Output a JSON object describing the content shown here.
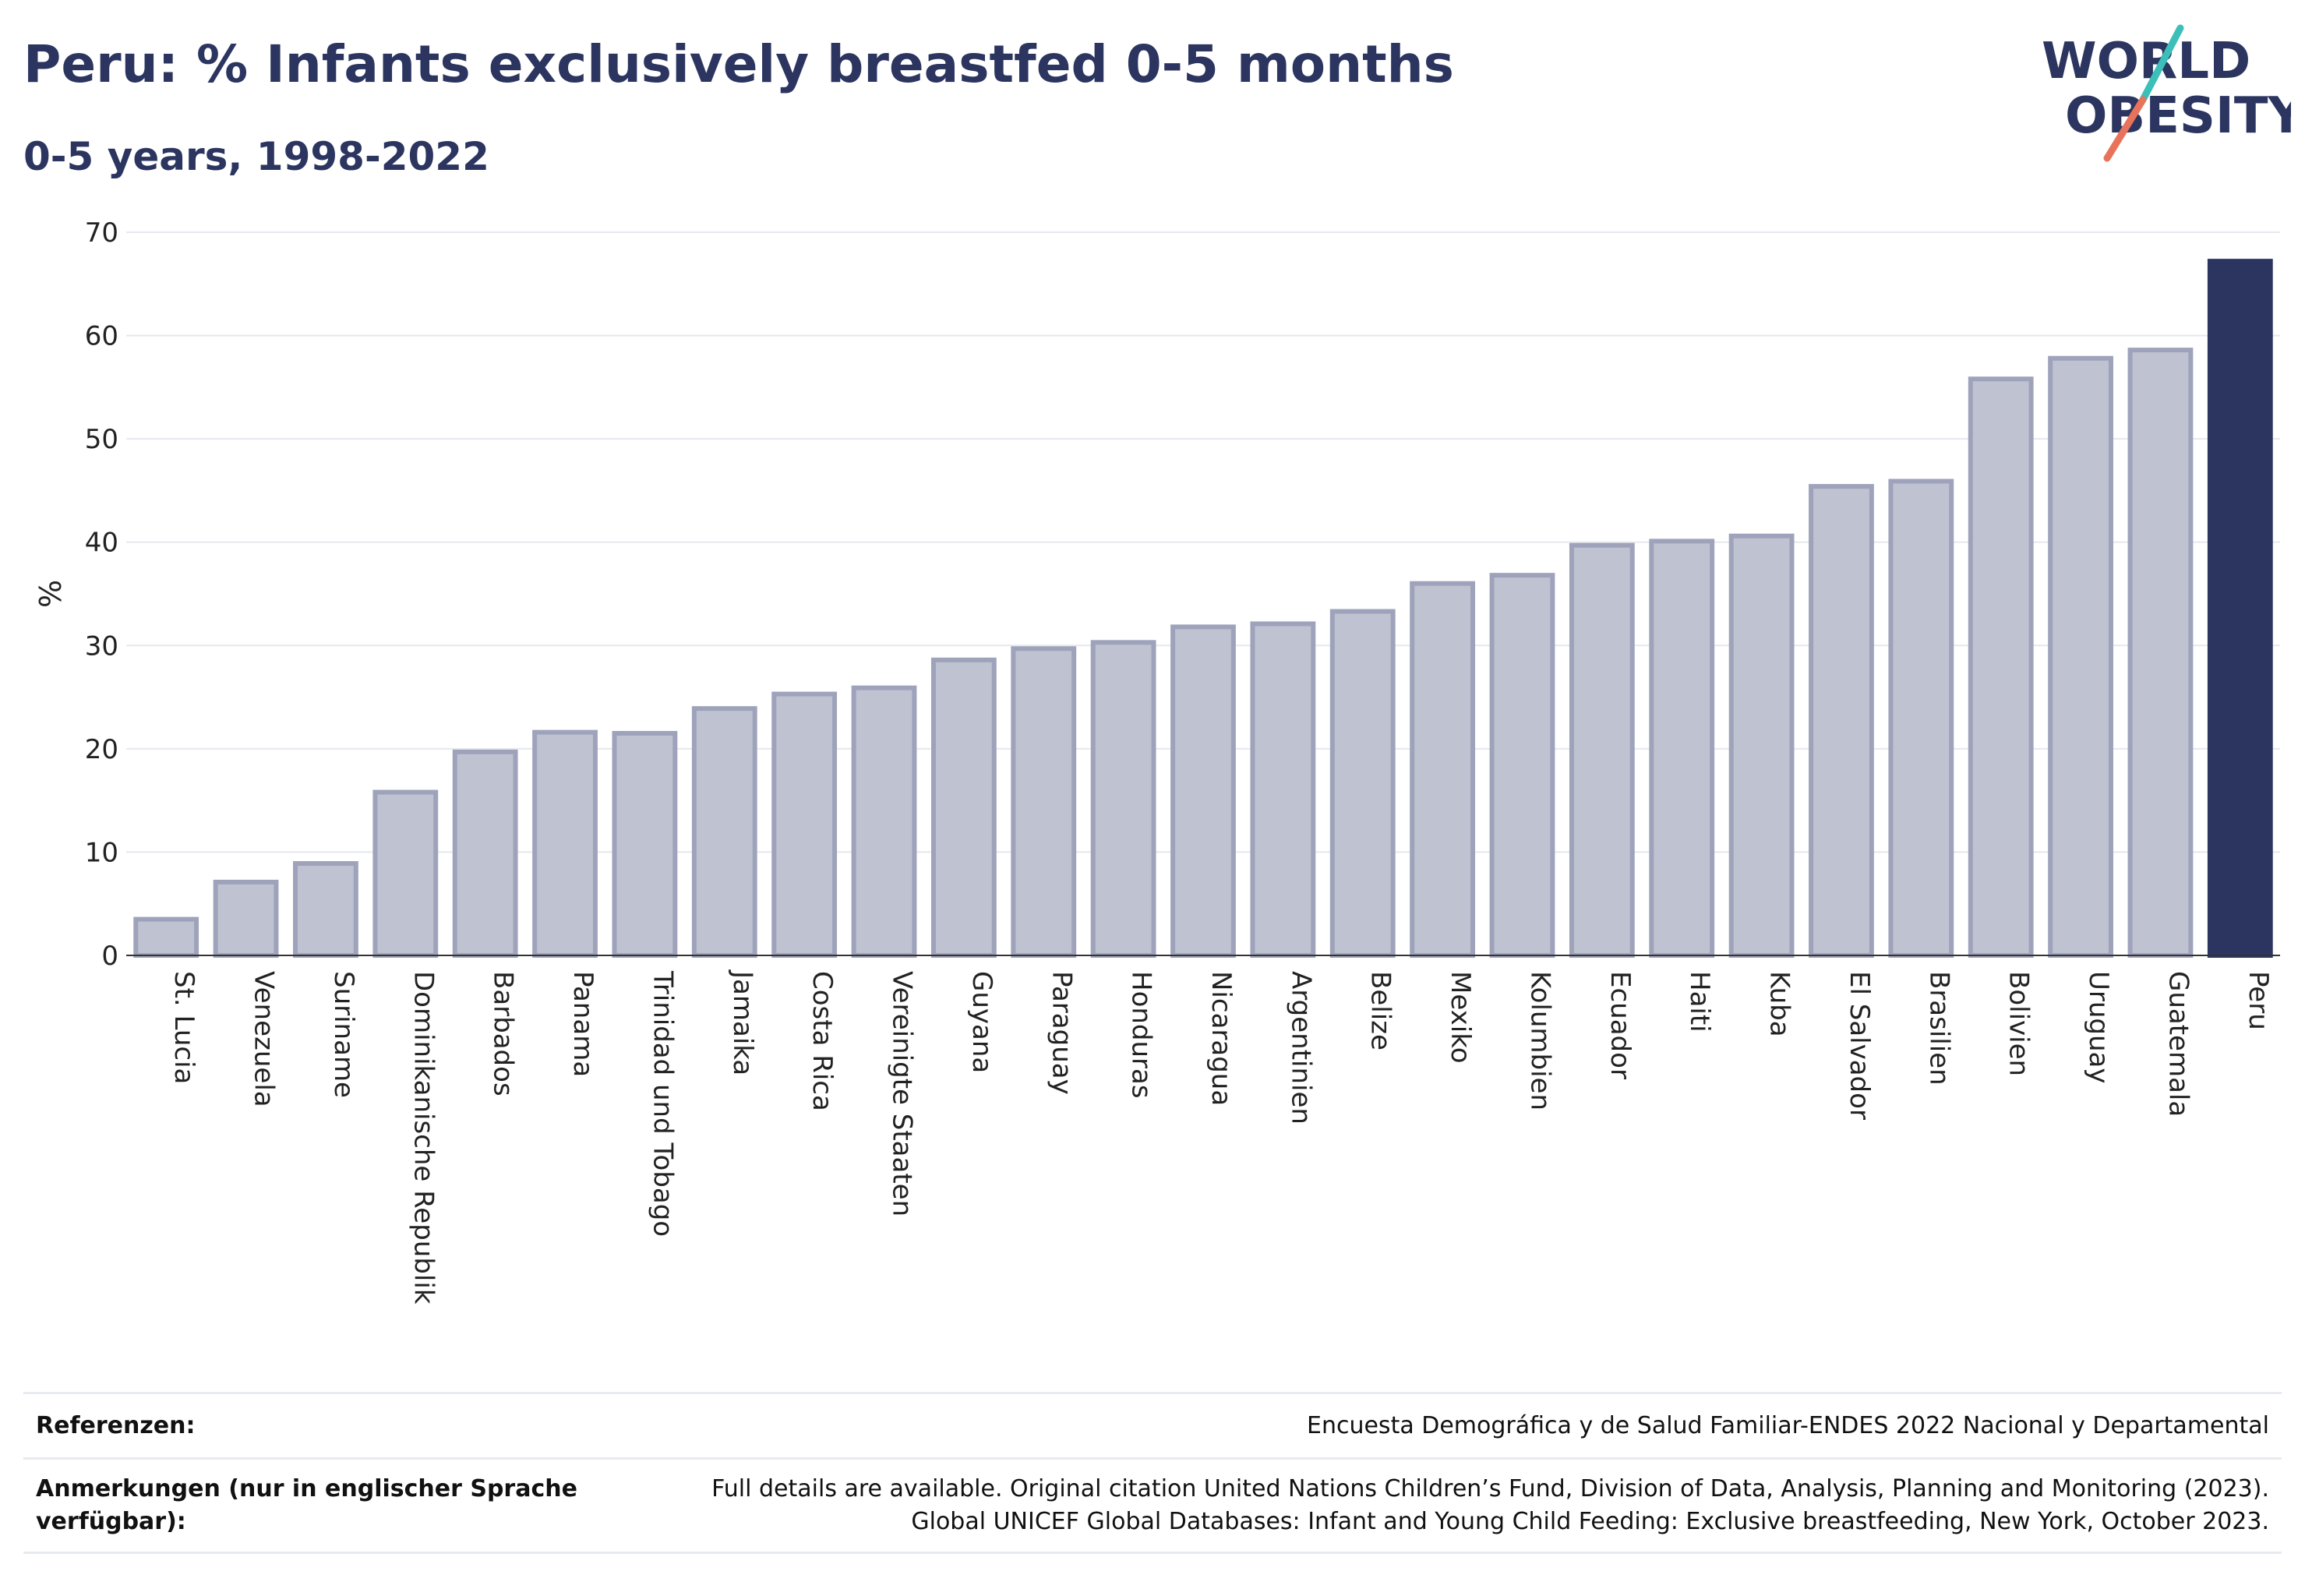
{
  "header": {
    "title": "Peru: % Infants exclusively breastfed 0-5 months",
    "subtitle": "0-5 years, 1998-2022"
  },
  "logo": {
    "line1": "WORLD",
    "line2": "OBESITY"
  },
  "colors": {
    "bar": "#bfc2d0",
    "bar_stroke": "#9ea3bb",
    "highlight": "#2b3560",
    "logo_slash_top": "#3bbfb8",
    "logo_slash_bottom": "#e8735a"
  },
  "chart_data": {
    "type": "bar",
    "ylabel": "%",
    "ylim": [
      0,
      70
    ],
    "yticks": [
      0,
      10,
      20,
      30,
      40,
      50,
      60,
      70
    ],
    "grid": true,
    "highlight": "Peru",
    "categories": [
      "St. Lucia",
      "Venezuela",
      "Suriname",
      "Dominikanische Republik",
      "Barbados",
      "Panama",
      "Trinidad und Tobago",
      "Jamaika",
      "Costa Rica",
      "Vereinigte Staaten",
      "Guyana",
      "Paraguay",
      "Honduras",
      "Nicaragua",
      "Argentinien",
      "Belize",
      "Mexiko",
      "Kolumbien",
      "Ecuador",
      "Haiti",
      "Kuba",
      "El Salvador",
      "Brasilien",
      "Bolivien",
      "Uruguay",
      "Guatemala",
      "Peru"
    ],
    "values": [
      3.5,
      7.1,
      8.9,
      15.8,
      19.7,
      21.6,
      21.5,
      23.9,
      25.3,
      25.9,
      28.6,
      29.7,
      30.3,
      31.8,
      32.1,
      33.3,
      36.0,
      36.8,
      39.7,
      40.1,
      40.6,
      45.4,
      45.9,
      55.8,
      57.8,
      58.6,
      67.2
    ]
  },
  "footer": {
    "references_label": "Referenzen:",
    "references_text": "Encuesta Demográfica y de Salud Familiar-ENDES 2022 Nacional y Departamental",
    "notes_label": "Anmerkungen (nur in englischer Sprache verfügbar):",
    "notes_line1": "Full details are available. Original citation United Nations Children’s Fund, Division of Data, Analysis, Planning and Monitoring (2023).",
    "notes_line2": "Global UNICEF Global Databases: Infant and Young Child Feeding: Exclusive breastfeeding, New York, October 2023."
  }
}
